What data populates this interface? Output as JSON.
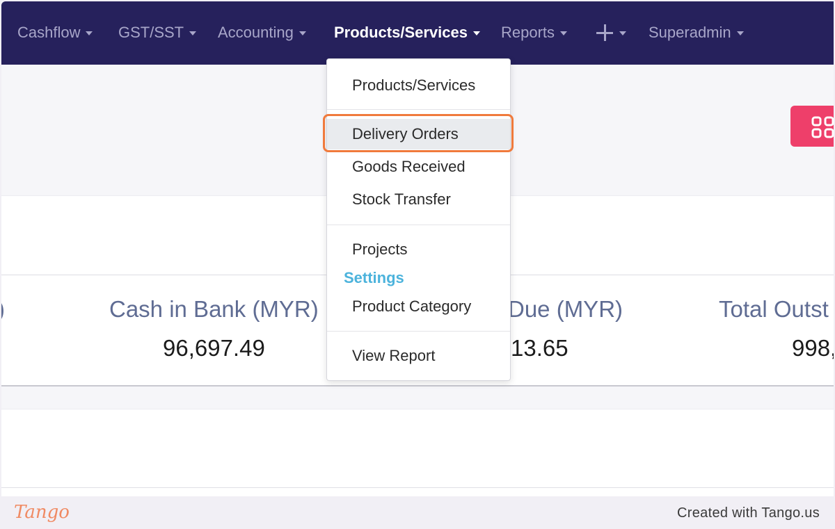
{
  "nav": {
    "items": [
      {
        "label": "Cashflow"
      },
      {
        "label": "GST/SST"
      },
      {
        "label": "Accounting"
      },
      {
        "label": "Products/Services"
      },
      {
        "label": "Reports"
      },
      {
        "label": ""
      },
      {
        "label": "Superadmin"
      }
    ]
  },
  "stats": {
    "partial_left_label": ")",
    "cash_in_bank_label": "Cash in Bank (MYR)",
    "cash_in_bank_value": "96,697.49",
    "due_label": "Due (MYR)",
    "due_value": "13.65",
    "total_outstanding_label": "Total Outst",
    "total_outstanding_value": "998,"
  },
  "dropdown": {
    "items": [
      {
        "label": "Products/Services"
      },
      {
        "label": "Delivery Orders"
      },
      {
        "label": "Goods Received"
      },
      {
        "label": "Stock Transfer"
      },
      {
        "label": "Projects"
      },
      {
        "label": "Product Category"
      },
      {
        "label": "View Report"
      }
    ],
    "settings_header": "Settings"
  },
  "colors": {
    "navbar": "#26215c",
    "accent_pink": "#ee3f6a",
    "highlight_ring": "#f07a3c",
    "settings_header": "#4cb3dc"
  },
  "icons": {
    "add": "plus-icon",
    "grid": "grid-icon"
  },
  "footer": {
    "logo": "Tango",
    "credit": "Created with Tango.us"
  }
}
